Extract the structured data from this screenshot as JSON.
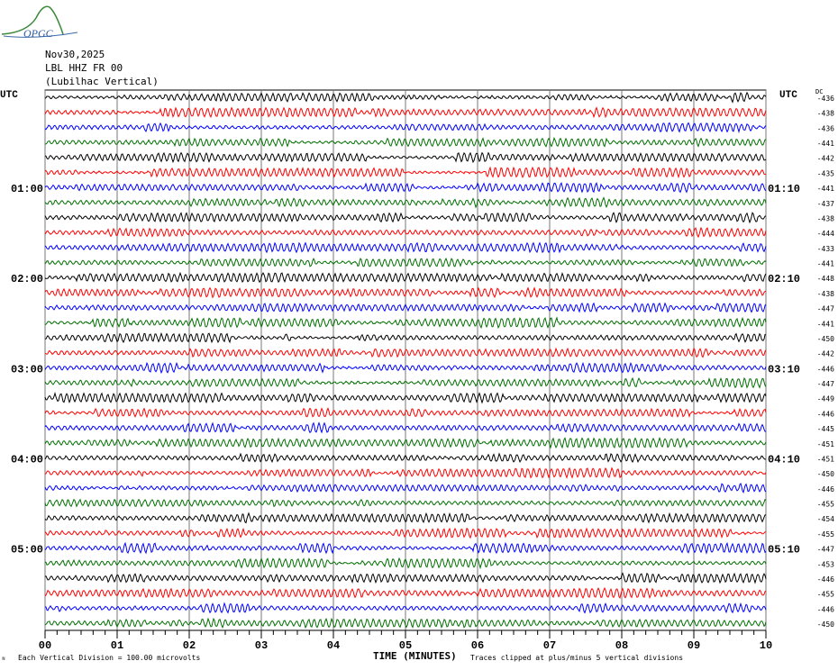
{
  "logo": {
    "text": "OPGC"
  },
  "header": {
    "date": "Nov30,2025",
    "station": "LBL HHZ FR 00",
    "location": "(Lubilhac Vertical)"
  },
  "chart_data": {
    "type": "line",
    "subtype": "helicorder",
    "left_axis_title": "UTC",
    "right_axis_title": "UTC",
    "dc_label": "DC",
    "left_labels": [
      {
        "trace": 6,
        "text": "01:00"
      },
      {
        "trace": 12,
        "text": "02:00"
      },
      {
        "trace": 18,
        "text": "03:00"
      },
      {
        "trace": 24,
        "text": "04:00"
      },
      {
        "trace": 30,
        "text": "05:00"
      }
    ],
    "right_labels": [
      {
        "trace": 6,
        "text": "01:10"
      },
      {
        "trace": 12,
        "text": "02:10"
      },
      {
        "trace": 18,
        "text": "03:10"
      },
      {
        "trace": 24,
        "text": "04:10"
      },
      {
        "trace": 30,
        "text": "05:10"
      }
    ],
    "dc_offsets": [
      "-436",
      "-438",
      "-436",
      "-441",
      "-442",
      "-435",
      "-441",
      "-437",
      "-438",
      "-444",
      "-433",
      "-441",
      "-448",
      "-438",
      "-447",
      "-441",
      "-450",
      "-442",
      "-446",
      "-447",
      "-449",
      "-446",
      "-445",
      "-451",
      "-451",
      "-450",
      "-446",
      "-455",
      "-454",
      "-455",
      "-447",
      "-453",
      "-446",
      "-455",
      "-446",
      "-450"
    ],
    "trace_colors": [
      "#000000",
      "#ff0000",
      "#0000ff",
      "#007000"
    ],
    "minutes_per_line": 10,
    "xlim": [
      0,
      10
    ],
    "x_ticks": [
      "00",
      "01",
      "02",
      "03",
      "04",
      "05",
      "06",
      "07",
      "08",
      "09",
      "10"
    ],
    "xlabel": "TIME (MINUTES)",
    "grid": true
  },
  "footer": {
    "scale": "Each Vertical Division =  100.00 microvolts",
    "clip": "Traces clipped at plus/minus 5 vertical divisions"
  }
}
